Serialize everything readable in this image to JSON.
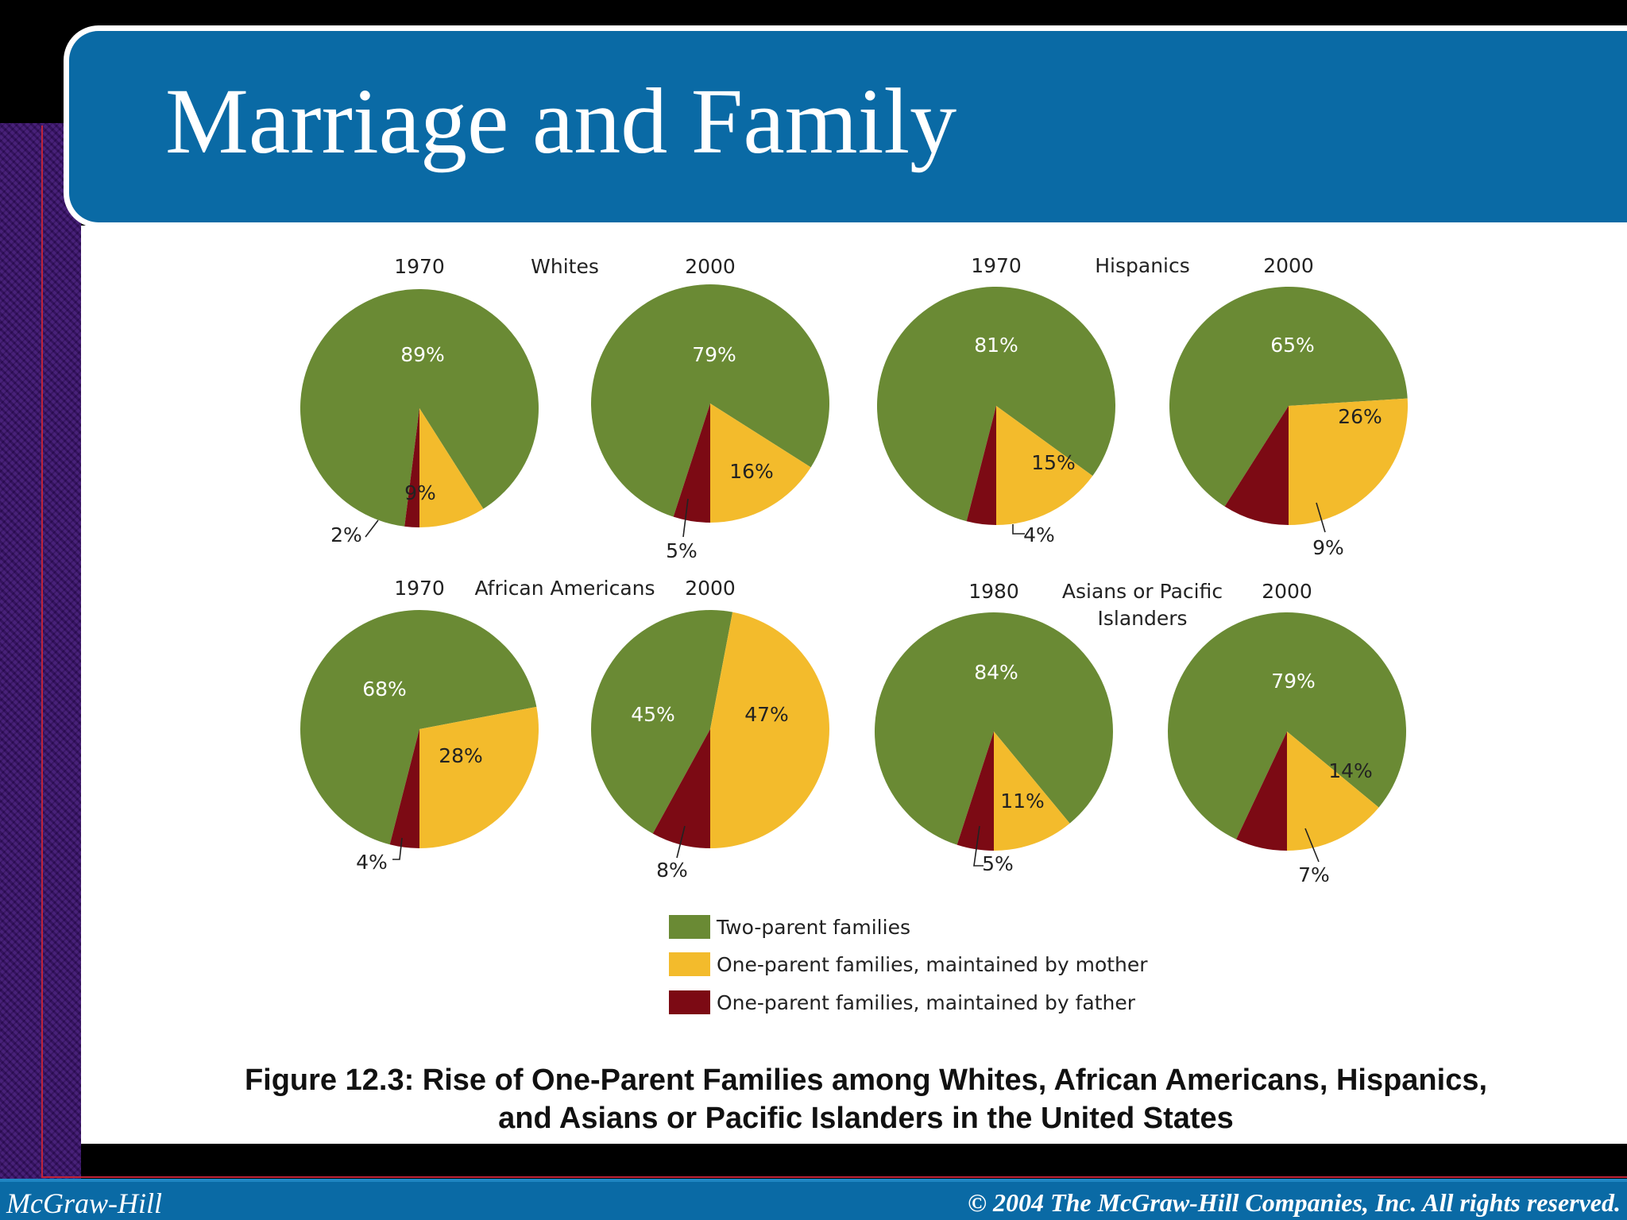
{
  "slide": {
    "title": "Marriage and Family",
    "caption_line1": "Figure 12.3: Rise of One-Parent Families among Whites, African Americans, Hispanics,",
    "caption_line2": "and Asians or Pacific Islanders in the United States",
    "footer_left": "McGraw-Hill",
    "footer_right": "© 2004 The McGraw-Hill Companies, Inc. All rights reserved."
  },
  "colors": {
    "two_parent": "#6a8a34",
    "mother": "#f3bb2c",
    "father": "#7c0a14",
    "banner": "#0a6aa5"
  },
  "chart_data": {
    "type": "pie",
    "legend": {
      "placement": "bottom-center",
      "entries": [
        {
          "key": "two_parent",
          "label": "Two-parent families"
        },
        {
          "key": "mother",
          "label": "One-parent families, maintained by mother"
        },
        {
          "key": "father",
          "label": "One-parent families, maintained by father"
        }
      ]
    },
    "groups": [
      {
        "name": "Whites",
        "years": [
          "1970",
          "2000"
        ]
      },
      {
        "name": "Hispanics",
        "years": [
          "1970",
          "2000"
        ]
      },
      {
        "name": "African Americans",
        "years": [
          "1970",
          "2000"
        ]
      },
      {
        "name": "Asians or Pacific Islanders",
        "years": [
          "1980",
          "2000"
        ]
      }
    ],
    "pies": [
      {
        "group": "Whites",
        "year": "1970",
        "two_parent": 89,
        "mother": 9,
        "father": 2,
        "labels": {
          "two_parent": "89%",
          "mother": "9%",
          "father": "2%"
        }
      },
      {
        "group": "Whites",
        "year": "2000",
        "two_parent": 79,
        "mother": 16,
        "father": 5,
        "labels": {
          "two_parent": "79%",
          "mother": "16%",
          "father": "5%"
        }
      },
      {
        "group": "Hispanics",
        "year": "1970",
        "two_parent": 81,
        "mother": 15,
        "father": 4,
        "labels": {
          "two_parent": "81%",
          "mother": "15%",
          "father": "4%"
        }
      },
      {
        "group": "Hispanics",
        "year": "2000",
        "two_parent": 65,
        "mother": 26,
        "father": 9,
        "labels": {
          "two_parent": "65%",
          "mother": "26%",
          "father": "9%"
        }
      },
      {
        "group": "African Americans",
        "year": "1970",
        "two_parent": 68,
        "mother": 28,
        "father": 4,
        "labels": {
          "two_parent": "68%",
          "mother": "28%",
          "father": "4%"
        }
      },
      {
        "group": "African Americans",
        "year": "2000",
        "two_parent": 45,
        "mother": 47,
        "father": 8,
        "labels": {
          "two_parent": "45%",
          "mother": "47%",
          "father": "8%"
        }
      },
      {
        "group": "Asians or Pacific Islanders",
        "year": "1980",
        "two_parent": 84,
        "mother": 11,
        "father": 5,
        "labels": {
          "two_parent": "84%",
          "mother": "11%",
          "father": "5%"
        }
      },
      {
        "group": "Asians or Pacific Islanders",
        "year": "2000",
        "two_parent": 79,
        "mother": 14,
        "father": 7,
        "labels": {
          "two_parent": "79%",
          "mother": "14%",
          "father": "7%"
        }
      }
    ]
  }
}
